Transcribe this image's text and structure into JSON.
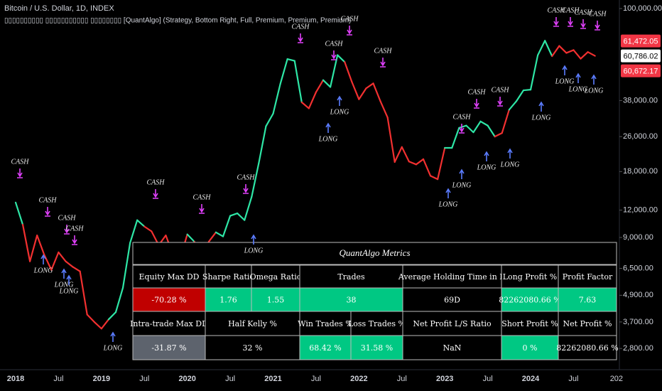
{
  "chart_data": {
    "type": "line",
    "title": "Bitcoin / U.S. Dollar, 1D, INDEX",
    "subtitle": "▯▯▯▯▯▯▯▯▯▯ ▯▯▯▯▯▯▯▯▯▯▯ ▯▯▯▯▯▯▯▯ [QuantAlgo] (Strategy, Bottom Right, Full, Premium, Premium, Premium)",
    "categories": [
      "2018",
      null,
      null,
      null,
      null,
      null,
      "Jul",
      null,
      null,
      null,
      null,
      null,
      "2019",
      null,
      null,
      null,
      null,
      null,
      "Jul",
      null,
      null,
      null,
      null,
      null,
      "2020",
      null,
      null,
      null,
      null,
      null,
      "Jul",
      null,
      null,
      null,
      null,
      null,
      "2021",
      null,
      null,
      null,
      null,
      null,
      "Jul",
      null,
      null,
      null,
      null,
      null,
      "2022",
      null,
      null,
      null,
      null,
      null,
      "Jul",
      null,
      null,
      null,
      null,
      null,
      "2023",
      null,
      null,
      null,
      null,
      null,
      "Jul",
      null,
      null,
      null,
      null,
      null,
      "2024",
      null,
      null,
      null,
      null,
      null,
      "Jul",
      null,
      null,
      null,
      null,
      null,
      "202"
    ],
    "series": [
      {
        "values": [
          13000,
          10300,
          7000,
          9200,
          7500,
          6400,
          7700,
          7000,
          6600,
          6300,
          4000,
          3700,
          3450,
          3800,
          4100,
          5300,
          8500,
          10800,
          10100,
          9600,
          8300,
          9200,
          7500,
          7200,
          9300,
          8600,
          6400,
          8600,
          9500,
          9100,
          11300,
          11600,
          10800,
          13800,
          19700,
          29000,
          33100,
          45200,
          58800,
          57700,
          37300,
          35000,
          41500,
          47100,
          43800,
          61300,
          57000,
          46300,
          38500,
          43200,
          45500,
          37700,
          31800,
          19900,
          23300,
          20000,
          19400,
          20500,
          17200,
          16600,
          23100,
          23100,
          28500,
          29200,
          27200,
          30500,
          29200,
          26000,
          27000,
          34500,
          37700,
          42300,
          42600,
          61200,
          71300,
          60600,
          67500,
          62700,
          64600,
          59000,
          63300,
          60786,
          null,
          null,
          null
        ],
        "colors": [
          "#2ee6a6",
          "#f23030",
          "#f23030",
          "#f23030",
          "#f23030",
          "#f23030",
          "#f23030",
          "#f23030",
          "#f23030",
          "#f23030",
          "#f23030",
          "#f23030",
          "#f23030",
          "#2ee6a6",
          "#2ee6a6",
          "#2ee6a6",
          "#2ee6a6",
          "#2ee6a6",
          "#f23030",
          "#f23030",
          "#f23030",
          "#f23030",
          "#f23030",
          "#f23030",
          "#2ee6a6",
          "#f23030",
          "#f23030",
          "#f23030",
          "#2ee6a6",
          "#2ee6a6",
          "#2ee6a6",
          "#2ee6a6",
          "#2ee6a6",
          "#2ee6a6",
          "#2ee6a6",
          "#2ee6a6",
          "#2ee6a6",
          "#2ee6a6",
          "#2ee6a6",
          "#2ee6a6",
          "#f23030",
          "#f23030",
          "#f23030",
          "#2ee6a6",
          "#2ee6a6",
          "#2ee6a6",
          "#f23030",
          "#f23030",
          "#f23030",
          "#f23030",
          "#f23030",
          "#f23030",
          "#f23030",
          "#f23030",
          "#f23030",
          "#f23030",
          "#f23030",
          "#f23030",
          "#f23030",
          "#f23030",
          "#2ee6a6",
          "#2ee6a6",
          "#2ee6a6",
          "#2ee6a6",
          "#2ee6a6",
          "#2ee6a6",
          "#2ee6a6",
          "#f23030",
          "#f23030",
          "#2ee6a6",
          "#2ee6a6",
          "#2ee6a6",
          "#2ee6a6",
          "#2ee6a6",
          "#2ee6a6",
          "#f23030",
          "#f23030",
          "#f23030",
          "#f23030",
          "#f23030",
          "#f23030",
          "#f23030",
          "#f23030",
          "#f23030",
          "#f23030"
        ]
      }
    ],
    "log_scale": true,
    "ylim": [
      2240,
      109400
    ],
    "yticks": [
      {
        "value": 100000,
        "label": "100,000.00"
      },
      {
        "value": 38000,
        "label": "38,000.00"
      },
      {
        "value": 26000,
        "label": "26,000.00"
      },
      {
        "value": 18000,
        "label": "18,000.00"
      },
      {
        "value": 12000,
        "label": "12,000.00"
      },
      {
        "value": 9000,
        "label": "9,000.00"
      },
      {
        "value": 6500,
        "label": "6,500.00"
      },
      {
        "value": 4900,
        "label": "4,900.00"
      },
      {
        "value": 3700,
        "label": "3,700.00"
      },
      {
        "value": 2800,
        "label": "2,800.00"
      }
    ],
    "price_labels": [
      {
        "value": 61472.05,
        "label": "61,472.05",
        "color": "#f23645"
      },
      {
        "value": 60786.02,
        "label": "60,786.02",
        "color": "#ffffff"
      },
      {
        "value": 60672.17,
        "label": "60,672.17",
        "color": "#f23645"
      }
    ],
    "annotations": [
      "CASH",
      "CASH",
      "CASH",
      "CASH",
      "CASH",
      "CASH",
      "CASH",
      "CASH",
      "CASH",
      "CASH",
      "CASH",
      "CASH",
      "CASH",
      "CASH",
      "CASH",
      "CASH",
      "CASH",
      "CASH",
      "LONG",
      "LONG",
      "LONG",
      "LONG",
      "LONG",
      "LONG",
      "LONG",
      "LONG",
      "LONG",
      "LONG",
      "LONG",
      "LONG",
      "LONG",
      "LONG",
      "LONG"
    ]
  },
  "table": {
    "title": "QuantAlgo Metrics",
    "rows": [
      [
        "Equity Max DD",
        "Sharpe Ratio",
        "Omega Ratio",
        "Trades",
        "Average Holding Time in D",
        "Long Profit %",
        "Profit Factor"
      ],
      [
        "-70.28 %",
        "1.76",
        "1.55",
        "38",
        "69D",
        "82262080.66 %",
        "7.63"
      ],
      [
        "Intra-trade Max DD",
        "Half Kelly %",
        "Win Trades %",
        "Loss Trades %",
        "Net Profit L/S Ratio",
        "Short Profit %",
        "Net Profit %"
      ],
      [
        "-31.87 %",
        "32 %",
        "68.42 %",
        "31.58 %",
        "NaN",
        "0 %",
        "82262080.66 %"
      ]
    ]
  }
}
